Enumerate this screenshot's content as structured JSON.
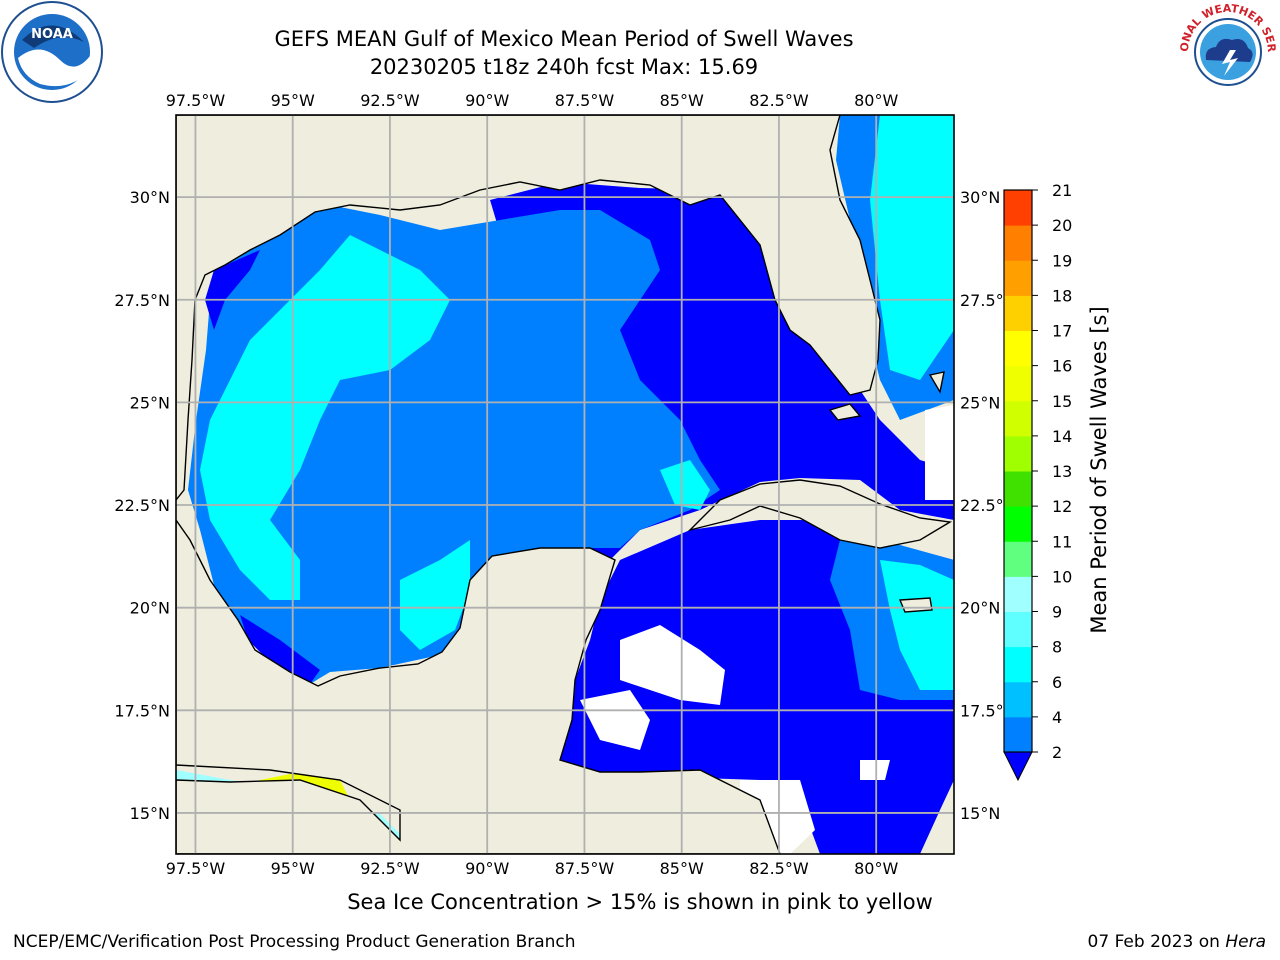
{
  "title": {
    "line1": "GEFS MEAN Gulf of Mexico Mean Period of Swell Waves",
    "line2": "20230205 t18z 240h fcst   Max: 15.69"
  },
  "map": {
    "lon_ticks": [
      "97.5°W",
      "95°W",
      "92.5°W",
      "90°W",
      "87.5°W",
      "85°W",
      "82.5°W",
      "80°W"
    ],
    "lat_ticks": [
      "30°N",
      "27.5°N",
      "25°N",
      "22.5°N",
      "20°N",
      "17.5°N",
      "15°N"
    ],
    "lon_range": [
      -98,
      -78
    ],
    "lat_range": [
      14,
      32
    ],
    "land_color": "#eeedde",
    "grid_color": "#b0b0b0"
  },
  "colorbar": {
    "label": "Mean Period of Swell Waves [s]",
    "ticks": [
      "2",
      "4",
      "6",
      "8",
      "9",
      "10",
      "11",
      "12",
      "13",
      "14",
      "15",
      "16",
      "17",
      "18",
      "19",
      "20",
      "21"
    ],
    "colors": [
      "#0000ff",
      "#0080ff",
      "#00c0ff",
      "#00ffff",
      "#60ffff",
      "#a0ffff",
      "#60ff80",
      "#00ff00",
      "#40e000",
      "#a0ff00",
      "#d0ff00",
      "#f0ff00",
      "#ffff00",
      "#ffd000",
      "#ffa000",
      "#ff8000",
      "#ff4000",
      "#ff0000"
    ],
    "extend": "min"
  },
  "note": "Sea Ice Concentration > 15% is shown in pink to yellow",
  "footer": {
    "left": "NCEP/EMC/Verification Post Processing Product Generation Branch",
    "right_date": "07 Feb 2023 on ",
    "right_host": "Hera"
  },
  "logos": {
    "noaa": "NOAA",
    "nws": "NATIONAL WEATHER SERVICE"
  }
}
